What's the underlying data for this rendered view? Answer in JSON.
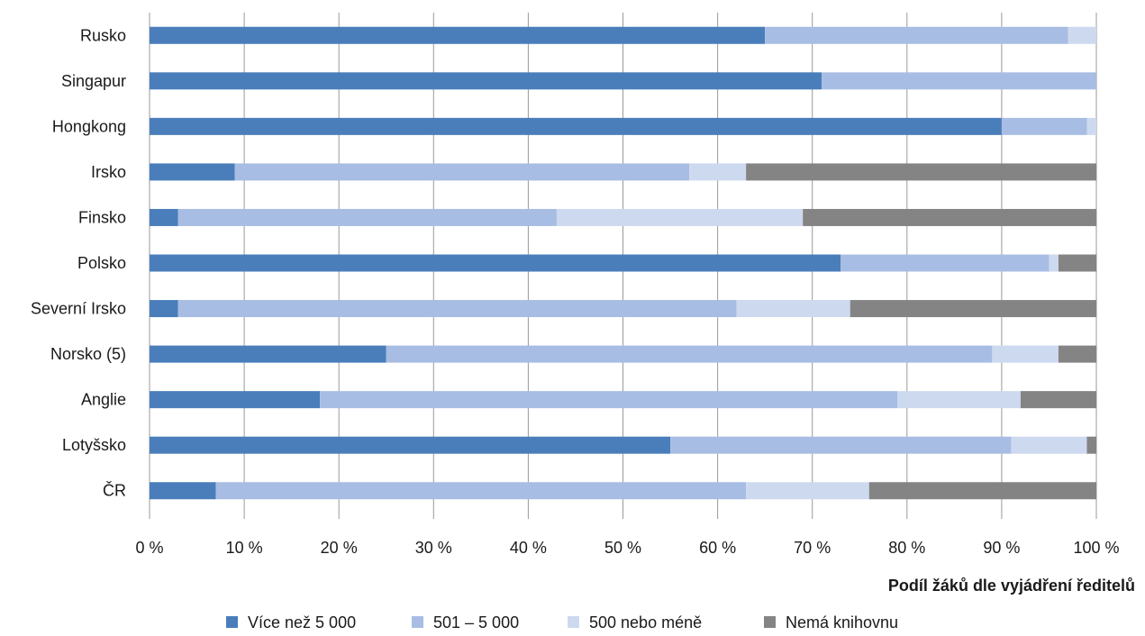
{
  "chart_data": {
    "type": "bar",
    "orientation": "horizontal",
    "stacked": "percent",
    "categories": [
      "Rusko",
      "Singapur",
      "Hongkong",
      "Irsko",
      "Finsko",
      "Polsko",
      "Severní Irsko",
      "Norsko (5)",
      "Anglie",
      "Lotyšsko",
      "ČR"
    ],
    "series": [
      {
        "name": "Více než 5 000",
        "color": "#4a7ebb",
        "values": [
          65,
          71,
          90,
          9,
          3,
          73,
          3,
          25,
          18,
          55,
          7
        ]
      },
      {
        "name": "501 – 5 000",
        "color": "#a8bde3",
        "values": [
          32,
          29,
          9,
          48,
          40,
          22,
          59,
          64,
          61,
          36,
          56
        ]
      },
      {
        "name": "500 nebo méně",
        "color": "#cdd9ef",
        "values": [
          3,
          0,
          1,
          6,
          26,
          1,
          12,
          7,
          13,
          8,
          13
        ]
      },
      {
        "name": "Nemá knihovnu",
        "color": "#848484",
        "values": [
          0,
          0,
          0,
          37,
          31,
          4,
          26,
          4,
          8,
          1,
          24
        ]
      }
    ],
    "xlim": [
      0,
      100
    ],
    "xticks": [
      "0 %",
      "10 %",
      "20 %",
      "30 %",
      "40 %",
      "50 %",
      "60 %",
      "70 %",
      "80 %",
      "90 %",
      "100 %"
    ],
    "xlabel": "Podíl žáků dle vyjádření ředitelů",
    "grid": "vertical",
    "legend": "bottom"
  }
}
